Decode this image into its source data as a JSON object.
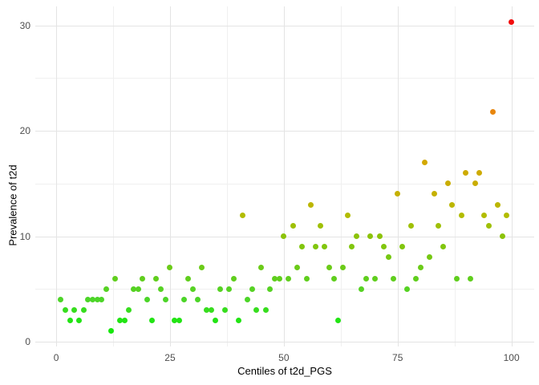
{
  "chart_data": {
    "type": "scatter",
    "title": "",
    "xlabel": "Centiles of t2d_PGS",
    "ylabel": "Prevalence of t2d",
    "legend": "none",
    "grid": true,
    "x_ticks": [
      0,
      25,
      50,
      75,
      100
    ],
    "x_minor_ticks": [
      12.5,
      37.5,
      62.5,
      87.5
    ],
    "y_ticks": [
      0,
      10,
      20,
      30
    ],
    "y_minor_ticks": [
      5,
      15,
      25
    ],
    "xlim": [
      -4.6,
      105
    ],
    "ylim": [
      -0.46,
      31.8
    ],
    "x": [
      1,
      2,
      3,
      4,
      5,
      6,
      7,
      8,
      9,
      10,
      11,
      12,
      13,
      14,
      15,
      16,
      17,
      18,
      19,
      20,
      21,
      22,
      23,
      24,
      25,
      26,
      27,
      28,
      29,
      30,
      31,
      32,
      33,
      34,
      35,
      36,
      37,
      38,
      39,
      40,
      41,
      42,
      43,
      44,
      45,
      46,
      47,
      48,
      49,
      50,
      51,
      52,
      53,
      54,
      55,
      56,
      57,
      58,
      59,
      60,
      61,
      62,
      63,
      64,
      65,
      66,
      67,
      68,
      69,
      70,
      71,
      72,
      73,
      74,
      75,
      76,
      77,
      78,
      79,
      80,
      81,
      82,
      83,
      84,
      85,
      86,
      87,
      88,
      89,
      90,
      91,
      92,
      93,
      94,
      95,
      96,
      97,
      98,
      99,
      100
    ],
    "y": [
      4,
      3,
      2,
      3,
      2,
      3,
      4,
      4,
      4,
      4,
      5,
      1,
      6,
      2,
      2,
      3,
      5,
      5,
      6,
      4,
      2,
      6,
      5,
      4,
      7,
      2,
      2,
      4,
      6,
      5,
      4,
      7,
      3,
      3,
      2,
      5,
      3,
      5,
      6,
      2,
      12,
      4,
      5,
      3,
      7,
      3,
      5,
      6,
      6,
      10,
      6,
      11,
      7,
      9,
      6,
      13,
      9,
      11,
      9,
      7,
      6,
      2,
      7,
      12,
      9,
      10,
      5,
      6,
      10,
      6,
      10,
      9,
      8,
      6,
      14,
      9,
      5,
      11,
      6,
      7,
      17,
      8,
      14,
      11,
      9,
      15,
      13,
      6,
      12,
      16,
      6,
      15,
      16,
      12,
      11,
      21.8,
      13,
      10,
      12,
      30.3
    ],
    "point_color_stops": [
      [
        1,
        "#16E70C"
      ],
      [
        2,
        "#22E414"
      ],
      [
        4,
        "#4CD528"
      ],
      [
        6,
        "#60CE1D"
      ],
      [
        8,
        "#76C813"
      ],
      [
        10,
        "#8CC309"
      ],
      [
        12,
        "#B2BC00"
      ],
      [
        14,
        "#C5B000"
      ],
      [
        17,
        "#D3A800"
      ],
      [
        21.8,
        "#E8860D"
      ],
      [
        30.3,
        "#F20D0D"
      ]
    ]
  },
  "style": {
    "background": "#FFFFFF",
    "grid_major_color": "#E4E4E4",
    "grid_minor_color": "#F0F0F0",
    "tick_label_color": "#4D4D4D",
    "axis_title_color": "#000000"
  }
}
